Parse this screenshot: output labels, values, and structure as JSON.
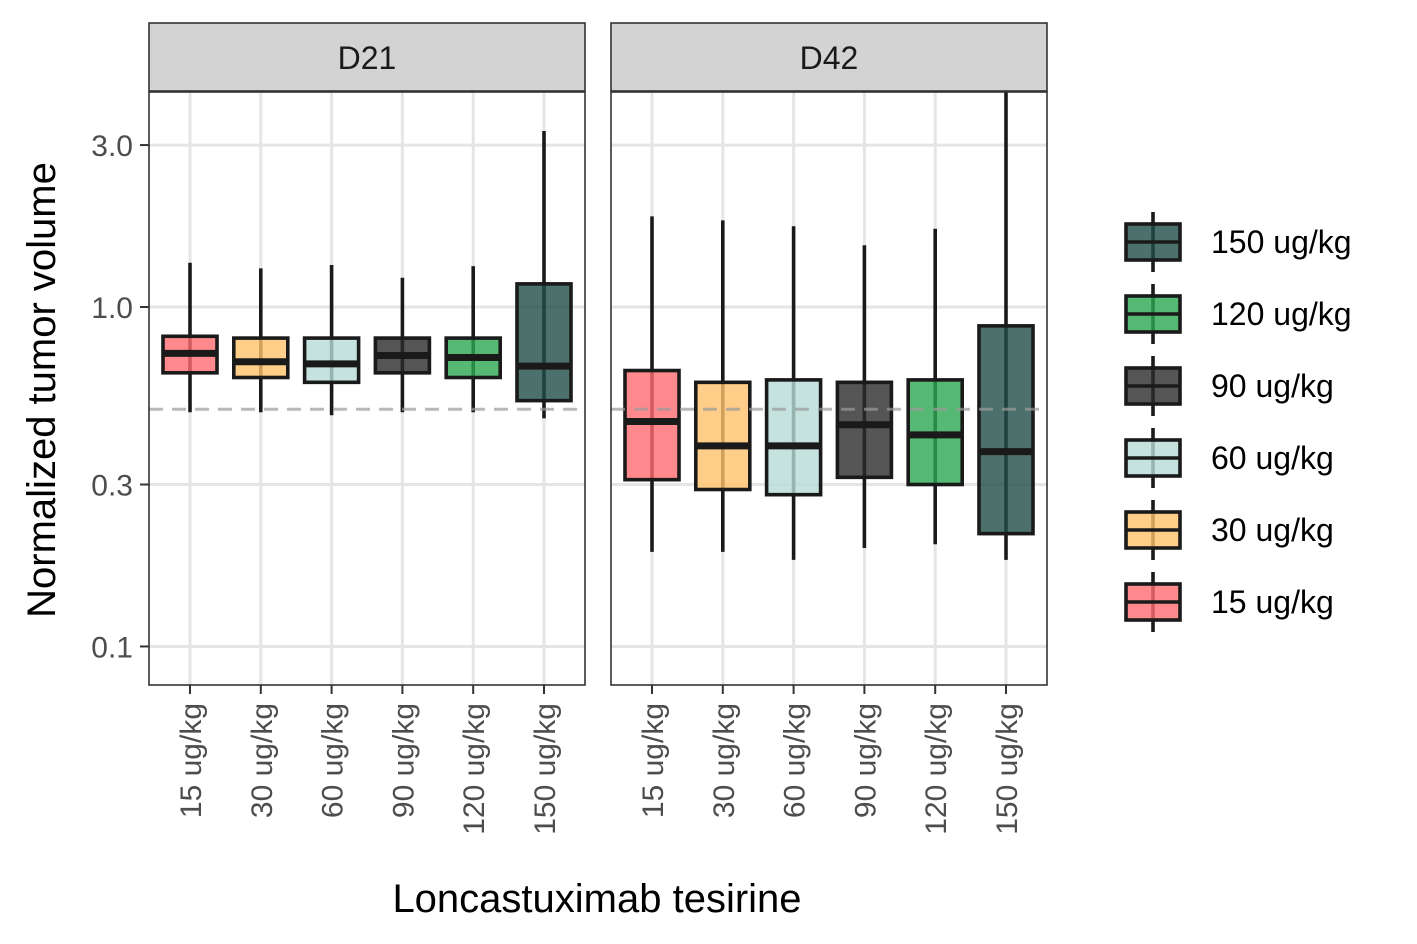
{
  "chart_data": {
    "type": "boxplot",
    "title": "",
    "xlabel": "Loncastuximab tesirine",
    "ylabel": "Normalized tumor volume",
    "y_scale": "log10",
    "ylim": [
      0.077,
      4.3
    ],
    "y_ticks": [
      0.1,
      0.3,
      1.0,
      3.0
    ],
    "y_tick_labels": [
      "0.1",
      "0.3",
      "1.0",
      "3.0"
    ],
    "reference_line": 0.5,
    "grid": true,
    "legend_position": "right",
    "categories": [
      "15 ug/kg",
      "30 ug/kg",
      "60 ug/kg",
      "90 ug/kg",
      "120 ug/kg",
      "150 ug/kg"
    ],
    "legend": [
      {
        "label": "150 ug/kg",
        "color": "#1f4e48"
      },
      {
        "label": "120 ug/kg",
        "color": "#2aa851"
      },
      {
        "label": "90 ug/kg",
        "color": "#2b2b2b"
      },
      {
        "label": "60 ug/kg",
        "color": "#b7dbd7"
      },
      {
        "label": "30 ug/kg",
        "color": "#ffc26a"
      },
      {
        "label": "15 ug/kg",
        "color": "#ff6b70"
      }
    ],
    "colors": {
      "15 ug/kg": "#ff6b70",
      "30 ug/kg": "#ffc26a",
      "60 ug/kg": "#b7dbd7",
      "90 ug/kg": "#2b2b2b",
      "120 ug/kg": "#2aa851",
      "150 ug/kg": "#1f4e48"
    },
    "panels": [
      {
        "name": "D21",
        "boxes": [
          {
            "category": "15 ug/kg",
            "min": 0.49,
            "q1": 0.64,
            "median": 0.73,
            "q3": 0.82,
            "max": 1.35
          },
          {
            "category": "30 ug/kg",
            "min": 0.49,
            "q1": 0.62,
            "median": 0.69,
            "q3": 0.81,
            "max": 1.3
          },
          {
            "category": "60 ug/kg",
            "min": 0.48,
            "q1": 0.6,
            "median": 0.68,
            "q3": 0.81,
            "max": 1.33
          },
          {
            "category": "90 ug/kg",
            "min": 0.49,
            "q1": 0.64,
            "median": 0.72,
            "q3": 0.81,
            "max": 1.22
          },
          {
            "category": "120 ug/kg",
            "min": 0.49,
            "q1": 0.62,
            "median": 0.71,
            "q3": 0.81,
            "max": 1.32
          },
          {
            "category": "150 ug/kg",
            "min": 0.47,
            "q1": 0.53,
            "median": 0.67,
            "q3": 1.17,
            "max": 3.3
          }
        ]
      },
      {
        "name": "D42",
        "boxes": [
          {
            "category": "15 ug/kg",
            "min": 0.19,
            "q1": 0.31,
            "median": 0.46,
            "q3": 0.65,
            "max": 1.85
          },
          {
            "category": "30 ug/kg",
            "min": 0.19,
            "q1": 0.29,
            "median": 0.39,
            "q3": 0.6,
            "max": 1.8
          },
          {
            "category": "60 ug/kg",
            "min": 0.18,
            "q1": 0.28,
            "median": 0.39,
            "q3": 0.61,
            "max": 1.73
          },
          {
            "category": "90 ug/kg",
            "min": 0.195,
            "q1": 0.315,
            "median": 0.45,
            "q3": 0.6,
            "max": 1.52
          },
          {
            "category": "120 ug/kg",
            "min": 0.2,
            "q1": 0.3,
            "median": 0.42,
            "q3": 0.61,
            "max": 1.7
          },
          {
            "category": "150 ug/kg",
            "min": 0.18,
            "q1": 0.215,
            "median": 0.375,
            "q3": 0.88,
            "max": 4.3
          }
        ]
      }
    ]
  }
}
